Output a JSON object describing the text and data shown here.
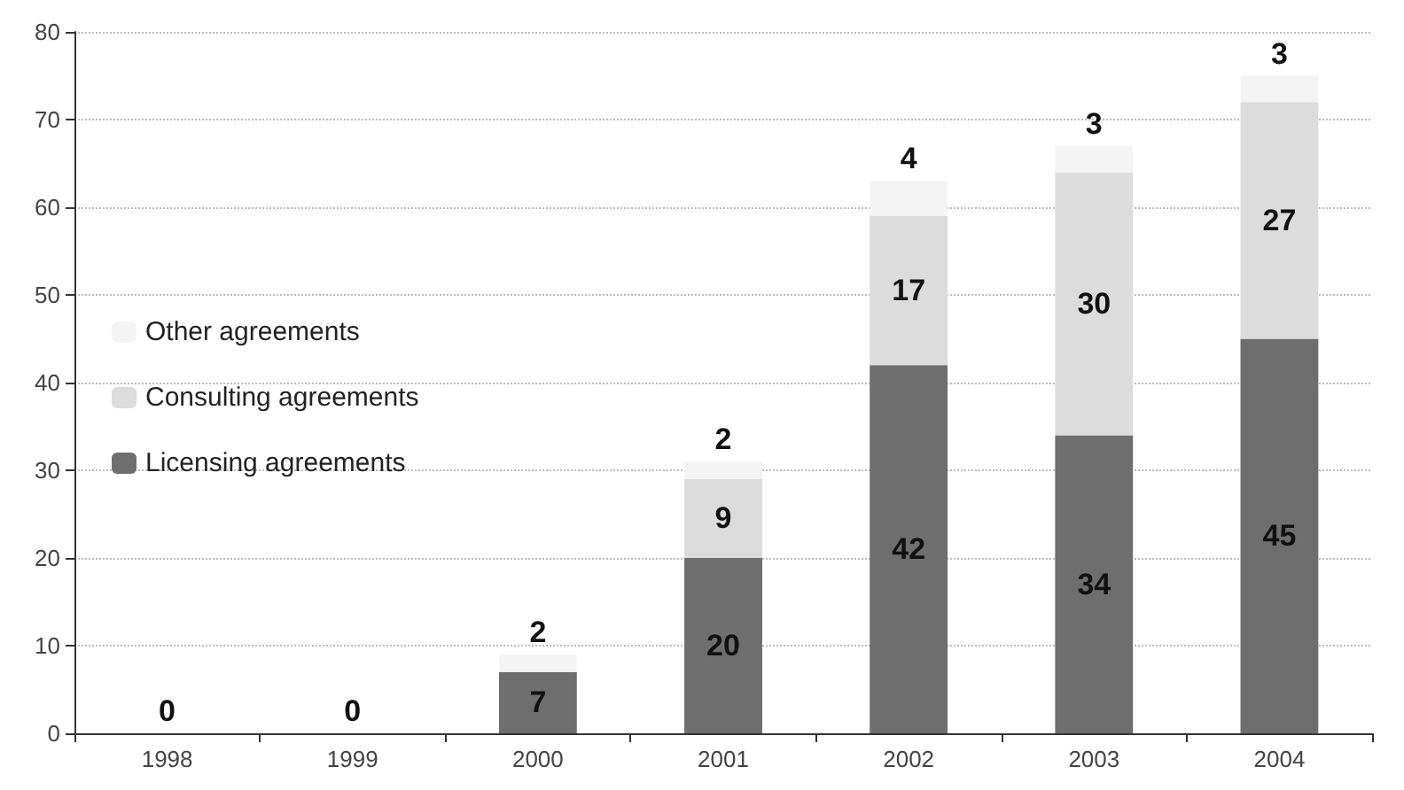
{
  "chart_data": {
    "type": "bar",
    "stacked": true,
    "categories": [
      "1998",
      "1999",
      "2000",
      "2001",
      "2002",
      "2003",
      "2004"
    ],
    "series": [
      {
        "name": "Licensing agreements",
        "color": "#6e6e6e",
        "values": [
          0,
          0,
          7,
          20,
          42,
          34,
          45
        ],
        "value_labels": [
          "0",
          "0",
          "7",
          "20",
          "42",
          "34",
          "45"
        ]
      },
      {
        "name": "Consulting agreements",
        "color": "#dcdcdc",
        "values": [
          0,
          0,
          0,
          9,
          17,
          30,
          27
        ],
        "value_labels": [
          null,
          null,
          null,
          "9",
          "17",
          "30",
          "27"
        ]
      },
      {
        "name": "Other agreements",
        "color": "#f4f4f4",
        "values": [
          0,
          0,
          2,
          2,
          4,
          3,
          3
        ],
        "value_labels": [
          null,
          null,
          "2",
          "2",
          "4",
          "3",
          "3"
        ]
      }
    ],
    "ylim": [
      0,
      80
    ],
    "yticks": [
      0,
      10,
      20,
      30,
      40,
      50,
      60,
      70,
      80
    ],
    "grid": "y",
    "legend": "left"
  }
}
